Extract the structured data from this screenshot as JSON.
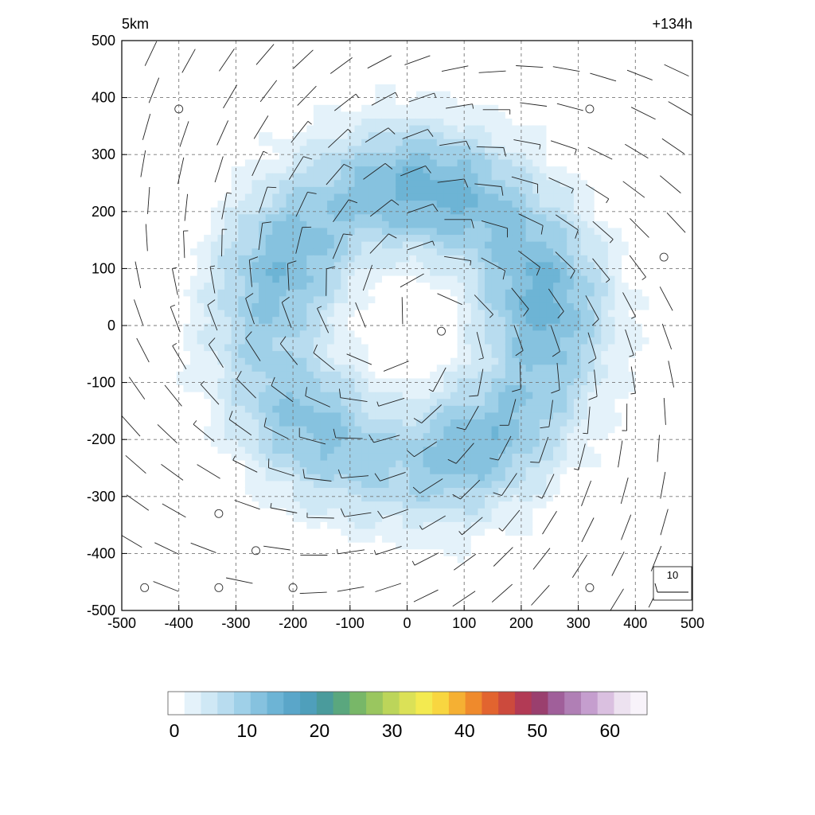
{
  "chart_data": {
    "type": "heatmap",
    "title_left": "5km",
    "title_right": "+134h",
    "xlabel": "",
    "ylabel": "",
    "xlim": [
      -500,
      500
    ],
    "ylim": [
      -500,
      500
    ],
    "x_ticks": [
      -500,
      -400,
      -300,
      -200,
      -100,
      0,
      100,
      200,
      300,
      400,
      500
    ],
    "y_ticks": [
      -500,
      -400,
      -300,
      -200,
      -100,
      0,
      100,
      200,
      300,
      400,
      500
    ],
    "grid": true,
    "field_description": "annular ring of values centred near (0,0) with a calm eye",
    "field_peak": 15,
    "ring_radius": 240,
    "eye_radius": 100,
    "colorbar": {
      "min": 0,
      "max": 66,
      "ticks": [
        0,
        10,
        20,
        30,
        40,
        50,
        60
      ],
      "colors": [
        "#ffffff",
        "#e4f2fa",
        "#cfe8f5",
        "#b8dcef",
        "#9fd0e8",
        "#86c2df",
        "#6db4d5",
        "#5aa6c9",
        "#4f9fbb",
        "#4a9b9c",
        "#5aa77e",
        "#78b768",
        "#9ac65f",
        "#bcd55a",
        "#dbe157",
        "#f3ea50",
        "#f8d640",
        "#f5b033",
        "#ef8a2c",
        "#e2642f",
        "#cc4a3d",
        "#b23a55",
        "#9a3f6e",
        "#a05f9a",
        "#b07fb5",
        "#c59ece",
        "#dac0e0",
        "#ede2f0",
        "#f8f3fa"
      ]
    },
    "wind_barbs": [
      {
        "x": -400,
        "y": 380,
        "calm": true
      },
      {
        "x": 320,
        "y": 380,
        "calm": true
      },
      {
        "x": 450,
        "y": 120,
        "calm": true
      },
      {
        "x": 60,
        "y": -10,
        "calm": true
      },
      {
        "x": -330,
        "y": -330,
        "calm": true
      },
      {
        "x": -265,
        "y": -395,
        "calm": true
      },
      {
        "x": -460,
        "y": -460,
        "calm": true
      },
      {
        "x": -330,
        "y": -460,
        "calm": true
      },
      {
        "x": -200,
        "y": -460,
        "calm": true
      },
      {
        "x": 320,
        "y": -460,
        "calm": true
      }
    ],
    "reference_barb": {
      "label": "10"
    }
  }
}
